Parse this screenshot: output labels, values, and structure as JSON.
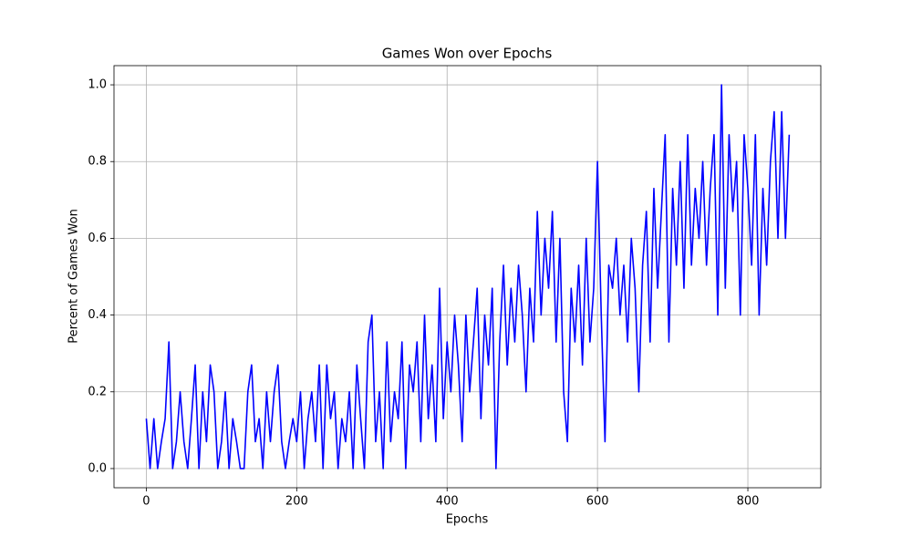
{
  "chart_data": {
    "type": "line",
    "title": "Games Won over Epochs",
    "xlabel": "Epochs",
    "ylabel": "Percent of Games Won",
    "color": "#0000ff",
    "grid": true,
    "xlim": [
      -43,
      897
    ],
    "ylim": [
      -0.05,
      1.05
    ],
    "xticks": [
      0,
      200,
      400,
      600,
      800
    ],
    "yticks": [
      {
        "value": 0,
        "label": "0.0"
      },
      {
        "value": 0.2,
        "label": "0.2"
      },
      {
        "value": 0.4,
        "label": "0.4"
      },
      {
        "value": 0.6,
        "label": "0.6"
      },
      {
        "value": 0.8,
        "label": "0.8"
      },
      {
        "value": 1,
        "label": "1.0"
      }
    ],
    "x": [
      0,
      5,
      10,
      15,
      20,
      25,
      30,
      35,
      40,
      45,
      50,
      55,
      60,
      65,
      70,
      75,
      80,
      85,
      90,
      95,
      100,
      105,
      110,
      115,
      120,
      125,
      130,
      135,
      140,
      145,
      150,
      155,
      160,
      165,
      170,
      175,
      180,
      185,
      190,
      195,
      200,
      205,
      210,
      215,
      220,
      225,
      230,
      235,
      240,
      245,
      250,
      255,
      260,
      265,
      270,
      275,
      280,
      285,
      290,
      295,
      300,
      305,
      310,
      315,
      320,
      325,
      330,
      335,
      340,
      345,
      350,
      355,
      360,
      365,
      370,
      375,
      380,
      385,
      390,
      395,
      400,
      405,
      410,
      415,
      420,
      425,
      430,
      435,
      440,
      445,
      450,
      455,
      460,
      465,
      470,
      475,
      480,
      485,
      490,
      495,
      500,
      505,
      510,
      515,
      520,
      525,
      530,
      535,
      540,
      545,
      550,
      555,
      560,
      565,
      570,
      575,
      580,
      585,
      590,
      595,
      600,
      605,
      610,
      615,
      620,
      625,
      630,
      635,
      640,
      645,
      650,
      655,
      660,
      665,
      670,
      675,
      680,
      685,
      690,
      695,
      700,
      705,
      710,
      715,
      720,
      725,
      730,
      735,
      740,
      745,
      750,
      755,
      760,
      765,
      770,
      775,
      780,
      785,
      790,
      795,
      800,
      805,
      810,
      815,
      820,
      825,
      830,
      835,
      840,
      845,
      850,
      855
    ],
    "values": [
      0.13,
      0,
      0.13,
      0,
      0.07,
      0.13,
      0.33,
      0,
      0.07,
      0.2,
      0.07,
      0,
      0.13,
      0.27,
      0,
      0.2,
      0.07,
      0.27,
      0.2,
      0,
      0.07,
      0.2,
      0,
      0.13,
      0.07,
      0,
      0,
      0.2,
      0.27,
      0.07,
      0.13,
      0,
      0.2,
      0.07,
      0.2,
      0.27,
      0.07,
      0,
      0.07,
      0.13,
      0.07,
      0.2,
      0,
      0.13,
      0.2,
      0.07,
      0.27,
      0,
      0.27,
      0.13,
      0.2,
      0,
      0.13,
      0.07,
      0.2,
      0,
      0.27,
      0.13,
      0,
      0.33,
      0.4,
      0.07,
      0.2,
      0,
      0.33,
      0.07,
      0.2,
      0.13,
      0.33,
      0,
      0.27,
      0.2,
      0.33,
      0.07,
      0.4,
      0.13,
      0.27,
      0.07,
      0.47,
      0.13,
      0.33,
      0.2,
      0.4,
      0.27,
      0.07,
      0.4,
      0.2,
      0.33,
      0.47,
      0.13,
      0.4,
      0.27,
      0.47,
      0,
      0.33,
      0.53,
      0.27,
      0.47,
      0.33,
      0.53,
      0.4,
      0.2,
      0.47,
      0.33,
      0.67,
      0.4,
      0.6,
      0.47,
      0.67,
      0.33,
      0.6,
      0.2,
      0.07,
      0.47,
      0.33,
      0.53,
      0.27,
      0.6,
      0.33,
      0.47,
      0.8,
      0.4,
      0.07,
      0.53,
      0.47,
      0.6,
      0.4,
      0.53,
      0.33,
      0.6,
      0.47,
      0.2,
      0.53,
      0.67,
      0.33,
      0.73,
      0.47,
      0.67,
      0.87,
      0.33,
      0.73,
      0.53,
      0.8,
      0.47,
      0.87,
      0.53,
      0.73,
      0.6,
      0.8,
      0.53,
      0.73,
      0.87,
      0.4,
      1.0,
      0.47,
      0.87,
      0.67,
      0.8,
      0.4,
      0.87,
      0.73,
      0.53,
      0.87,
      0.4,
      0.73,
      0.53,
      0.8,
      0.93,
      0.6,
      0.93,
      0.6,
      0.87
    ]
  }
}
